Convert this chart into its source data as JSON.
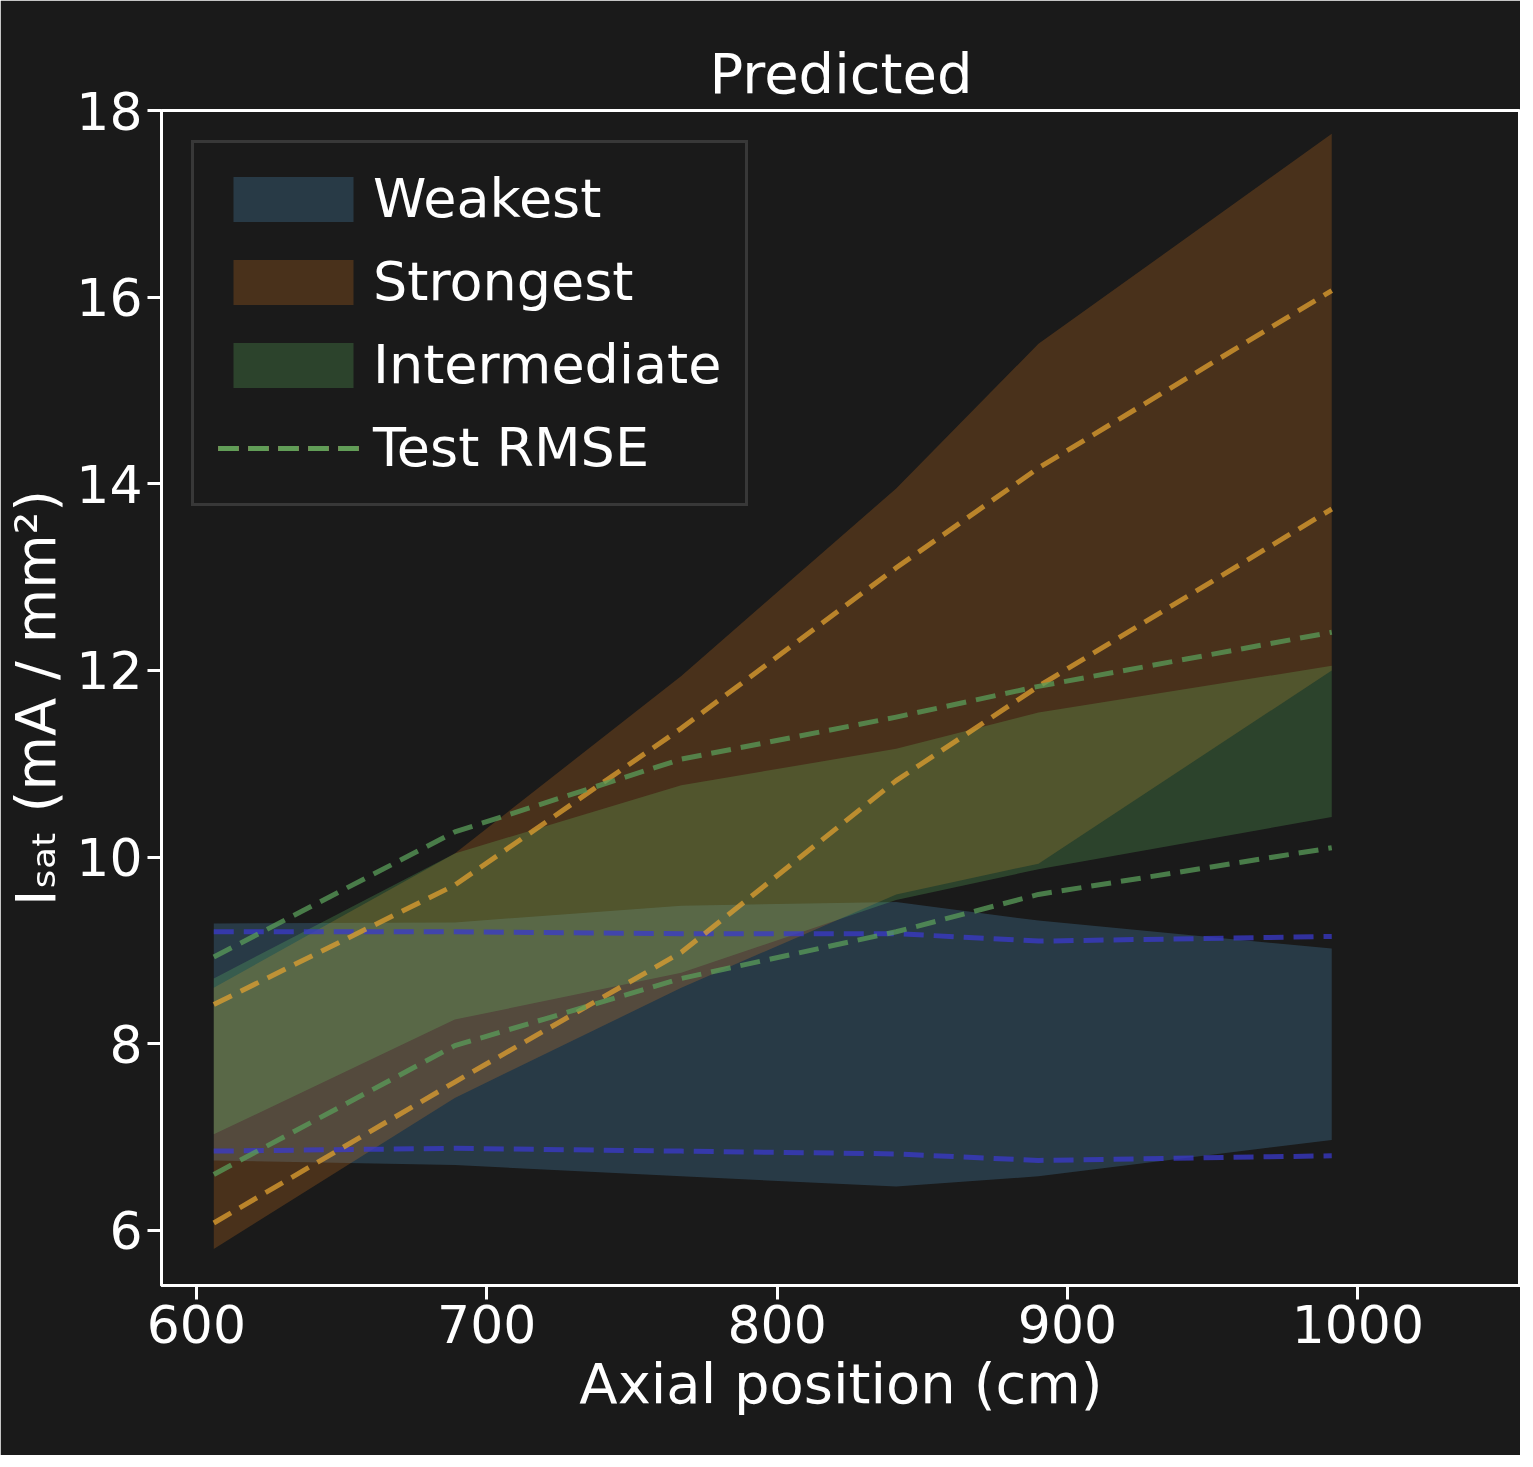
{
  "chart_data": {
    "type": "area",
    "title": "Predicted",
    "xlabel": "Axial position (cm)",
    "ylabel": "Iₛₐₜ (mA / mm²)",
    "x": [
      606,
      689,
      767,
      841,
      890,
      991
    ],
    "series": [
      {
        "name": "Weakest",
        "color": "#5dade2",
        "values": [
          null,
          null,
          null,
          null,
          null,
          null
        ],
        "lower": [
          6.75,
          6.7,
          6.58,
          6.47,
          6.58,
          6.97
        ],
        "upper": [
          9.29,
          9.3,
          9.48,
          9.52,
          9.32,
          9.02
        ]
      },
      {
        "name": "Strongest",
        "color": "#f0821e",
        "values": [
          null,
          null,
          null,
          null,
          null,
          null
        ],
        "lower": [
          5.8,
          7.42,
          8.6,
          9.6,
          9.93,
          12.0
        ],
        "upper": [
          8.6,
          10.04,
          11.94,
          13.95,
          15.5,
          17.75
        ]
      },
      {
        "name": "Intermediate",
        "color": "#6dd46d",
        "values": [
          null,
          null,
          null,
          null,
          null,
          null
        ],
        "lower": [
          7.03,
          8.26,
          8.76,
          9.54,
          9.87,
          10.43
        ],
        "upper": [
          8.7,
          10.04,
          10.77,
          11.16,
          11.55,
          12.05
        ]
      },
      {
        "name": "Test RMSE",
        "type": "line",
        "line_style": "dashed",
        "color": "#3a3acc",
        "values": [
          9.2,
          9.2,
          9.18,
          9.18,
          9.1,
          9.15
        ]
      },
      {
        "type": "line",
        "line_style": "dashed",
        "color": "#3a3acc",
        "values": [
          6.85,
          6.88,
          6.85,
          6.82,
          6.75,
          6.8
        ]
      },
      {
        "type": "line",
        "line_style": "dashed",
        "color": "#e0a030",
        "values": [
          8.42,
          9.7,
          11.38,
          13.1,
          14.17,
          16.07
        ]
      },
      {
        "type": "line",
        "line_style": "dashed",
        "color": "#e0a030",
        "values": [
          6.08,
          7.59,
          8.98,
          10.82,
          11.83,
          13.73
        ]
      },
      {
        "type": "line",
        "line_style": "dashed",
        "color": "#5a9e5a",
        "values": [
          8.93,
          10.27,
          11.05,
          11.5,
          11.83,
          12.41
        ]
      },
      {
        "type": "line",
        "line_style": "dashed",
        "color": "#5a9e5a",
        "values": [
          6.6,
          7.98,
          8.7,
          9.2,
          9.6,
          10.1
        ]
      }
    ],
    "xlim": [
      588,
      1056
    ],
    "ylim": [
      5.41,
      18
    ],
    "xticks": [
      600,
      700,
      800,
      900,
      1000
    ],
    "yticks": [
      6,
      8,
      10,
      12,
      14,
      16,
      18
    ],
    "grid": false,
    "legend": "top left"
  }
}
